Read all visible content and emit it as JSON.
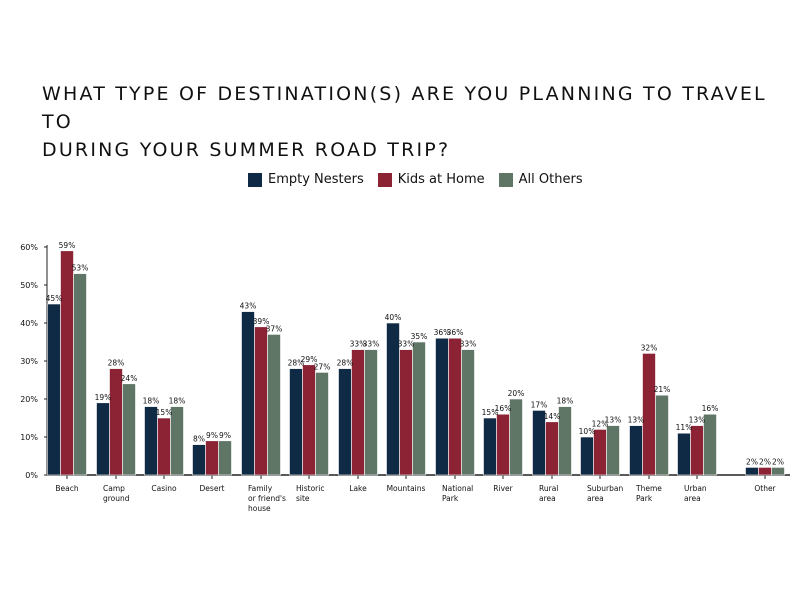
{
  "title_line1": "WHAT TYPE OF DESTINATION(S) ARE YOU PLANNING TO TRAVEL TO",
  "title_line2": "DURING YOUR SUMMER ROAD TRIP?",
  "legend": [
    {
      "label": "Empty Nesters",
      "color": "#0f2a44"
    },
    {
      "label": "Kids at Home",
      "color": "#8b2335"
    },
    {
      "label": "All Others",
      "color": "#5f7566"
    }
  ],
  "chart_data": {
    "type": "bar",
    "title": "WHAT TYPE OF DESTINATION(S) ARE YOU PLANNING TO TRAVEL TO DURING YOUR SUMMER ROAD TRIP?",
    "xlabel": "",
    "ylabel": "",
    "ylim": [
      0,
      60
    ],
    "yticks": [
      "0%",
      "10%",
      "20%",
      "30%",
      "40%",
      "50%",
      "60%"
    ],
    "grid": false,
    "legend_position": "top",
    "categories": [
      [
        "Beach"
      ],
      [
        "Camp",
        "ground"
      ],
      [
        "Casino"
      ],
      [
        "Desert"
      ],
      [
        "Family",
        "or friend's",
        "house"
      ],
      [
        "Historic",
        "site"
      ],
      [
        "Lake"
      ],
      [
        "Mountains"
      ],
      [
        "National",
        "Park"
      ],
      [
        "River"
      ],
      [
        "Rural",
        "area"
      ],
      [
        "Suburban",
        "area"
      ],
      [
        "Theme",
        "Park"
      ],
      [
        "Urban",
        "area"
      ],
      [
        "Other"
      ]
    ],
    "series": [
      {
        "name": "Empty Nesters",
        "color": "#0f2a44",
        "values": [
          45,
          19,
          18,
          8,
          43,
          28,
          28,
          40,
          36,
          15,
          17,
          10,
          13,
          11,
          2
        ]
      },
      {
        "name": "Kids at Home",
        "color": "#8b2335",
        "values": [
          59,
          28,
          15,
          9,
          39,
          29,
          33,
          33,
          36,
          16,
          14,
          12,
          32,
          13,
          2
        ]
      },
      {
        "name": "All Others",
        "color": "#5f7566",
        "values": [
          53,
          24,
          18,
          9,
          37,
          27,
          33,
          35,
          33,
          20,
          18,
          13,
          21,
          16,
          2
        ]
      }
    ]
  }
}
